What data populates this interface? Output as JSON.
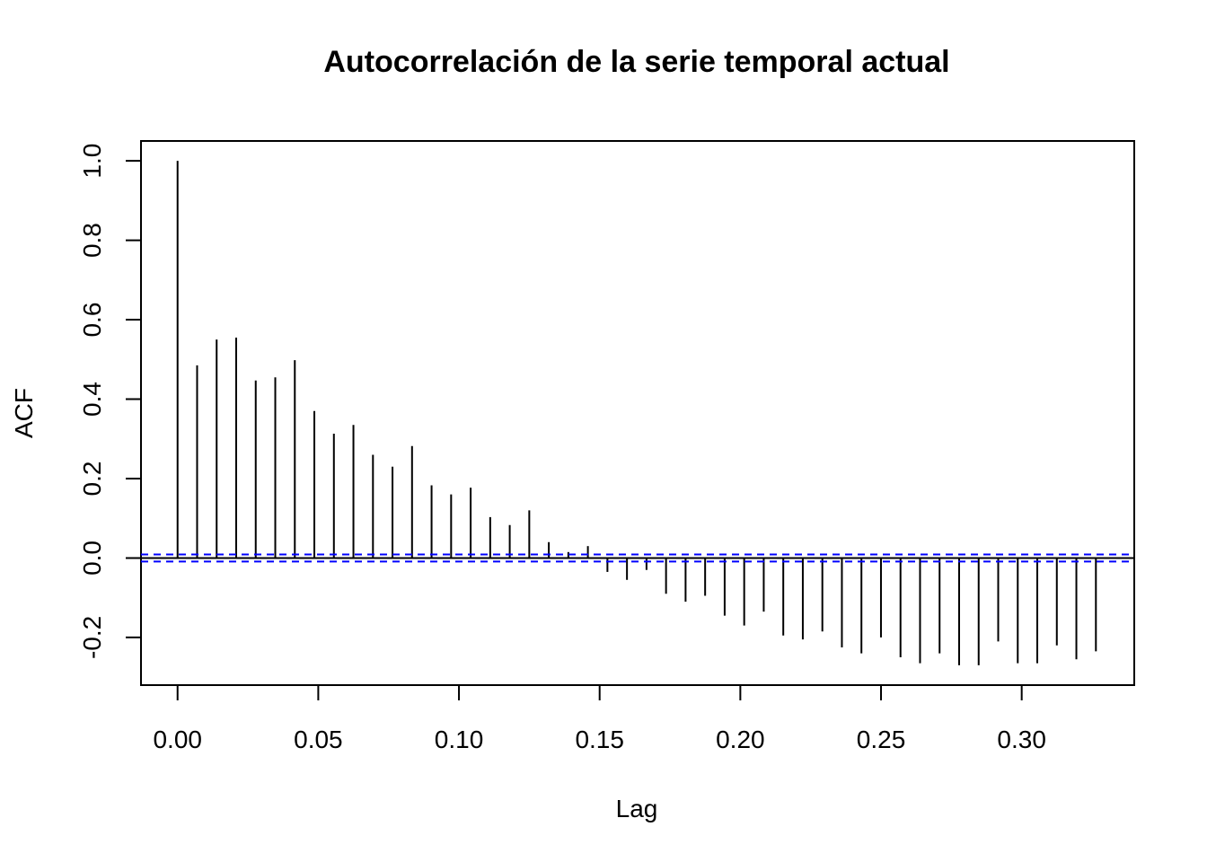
{
  "chart_data": {
    "type": "bar",
    "title": "Autocorrelación de la serie temporal actual",
    "xlabel": "Lag",
    "ylabel": "ACF",
    "xlim": [
      -0.013,
      0.34
    ],
    "ylim": [
      -0.32,
      1.05
    ],
    "x_ticks": [
      "0.00",
      "0.05",
      "0.10",
      "0.15",
      "0.20",
      "0.25",
      "0.30"
    ],
    "x_tick_values": [
      0.0,
      0.05,
      0.1,
      0.15,
      0.2,
      0.25,
      0.3
    ],
    "y_ticks": [
      "-0.2",
      "0.0",
      "0.2",
      "0.4",
      "0.6",
      "0.8",
      "1.0"
    ],
    "y_tick_values": [
      -0.2,
      0.0,
      0.2,
      0.4,
      0.6,
      0.8,
      1.0
    ],
    "lag_step": 0.006944,
    "series": [
      {
        "values": [
          1.0,
          0.485,
          0.55,
          0.555,
          0.447,
          0.455,
          0.498,
          0.37,
          0.313,
          0.335,
          0.26,
          0.23,
          0.282,
          0.183,
          0.16,
          0.177,
          0.103,
          0.083,
          0.12,
          0.04,
          0.015,
          0.03,
          -0.035,
          -0.055,
          -0.03,
          -0.09,
          -0.11,
          -0.095,
          -0.145,
          -0.17,
          -0.135,
          -0.195,
          -0.205,
          -0.185,
          -0.225,
          -0.24,
          -0.2,
          -0.25,
          -0.265,
          -0.24,
          -0.27,
          -0.27,
          -0.21,
          -0.265,
          -0.265,
          -0.22,
          -0.255,
          -0.235
        ]
      }
    ],
    "confidence_bound": 0.009,
    "colors": {
      "bars": "#000000",
      "confidence_lines": "#0000ff",
      "zero_line": "#000000"
    },
    "grid": false
  }
}
